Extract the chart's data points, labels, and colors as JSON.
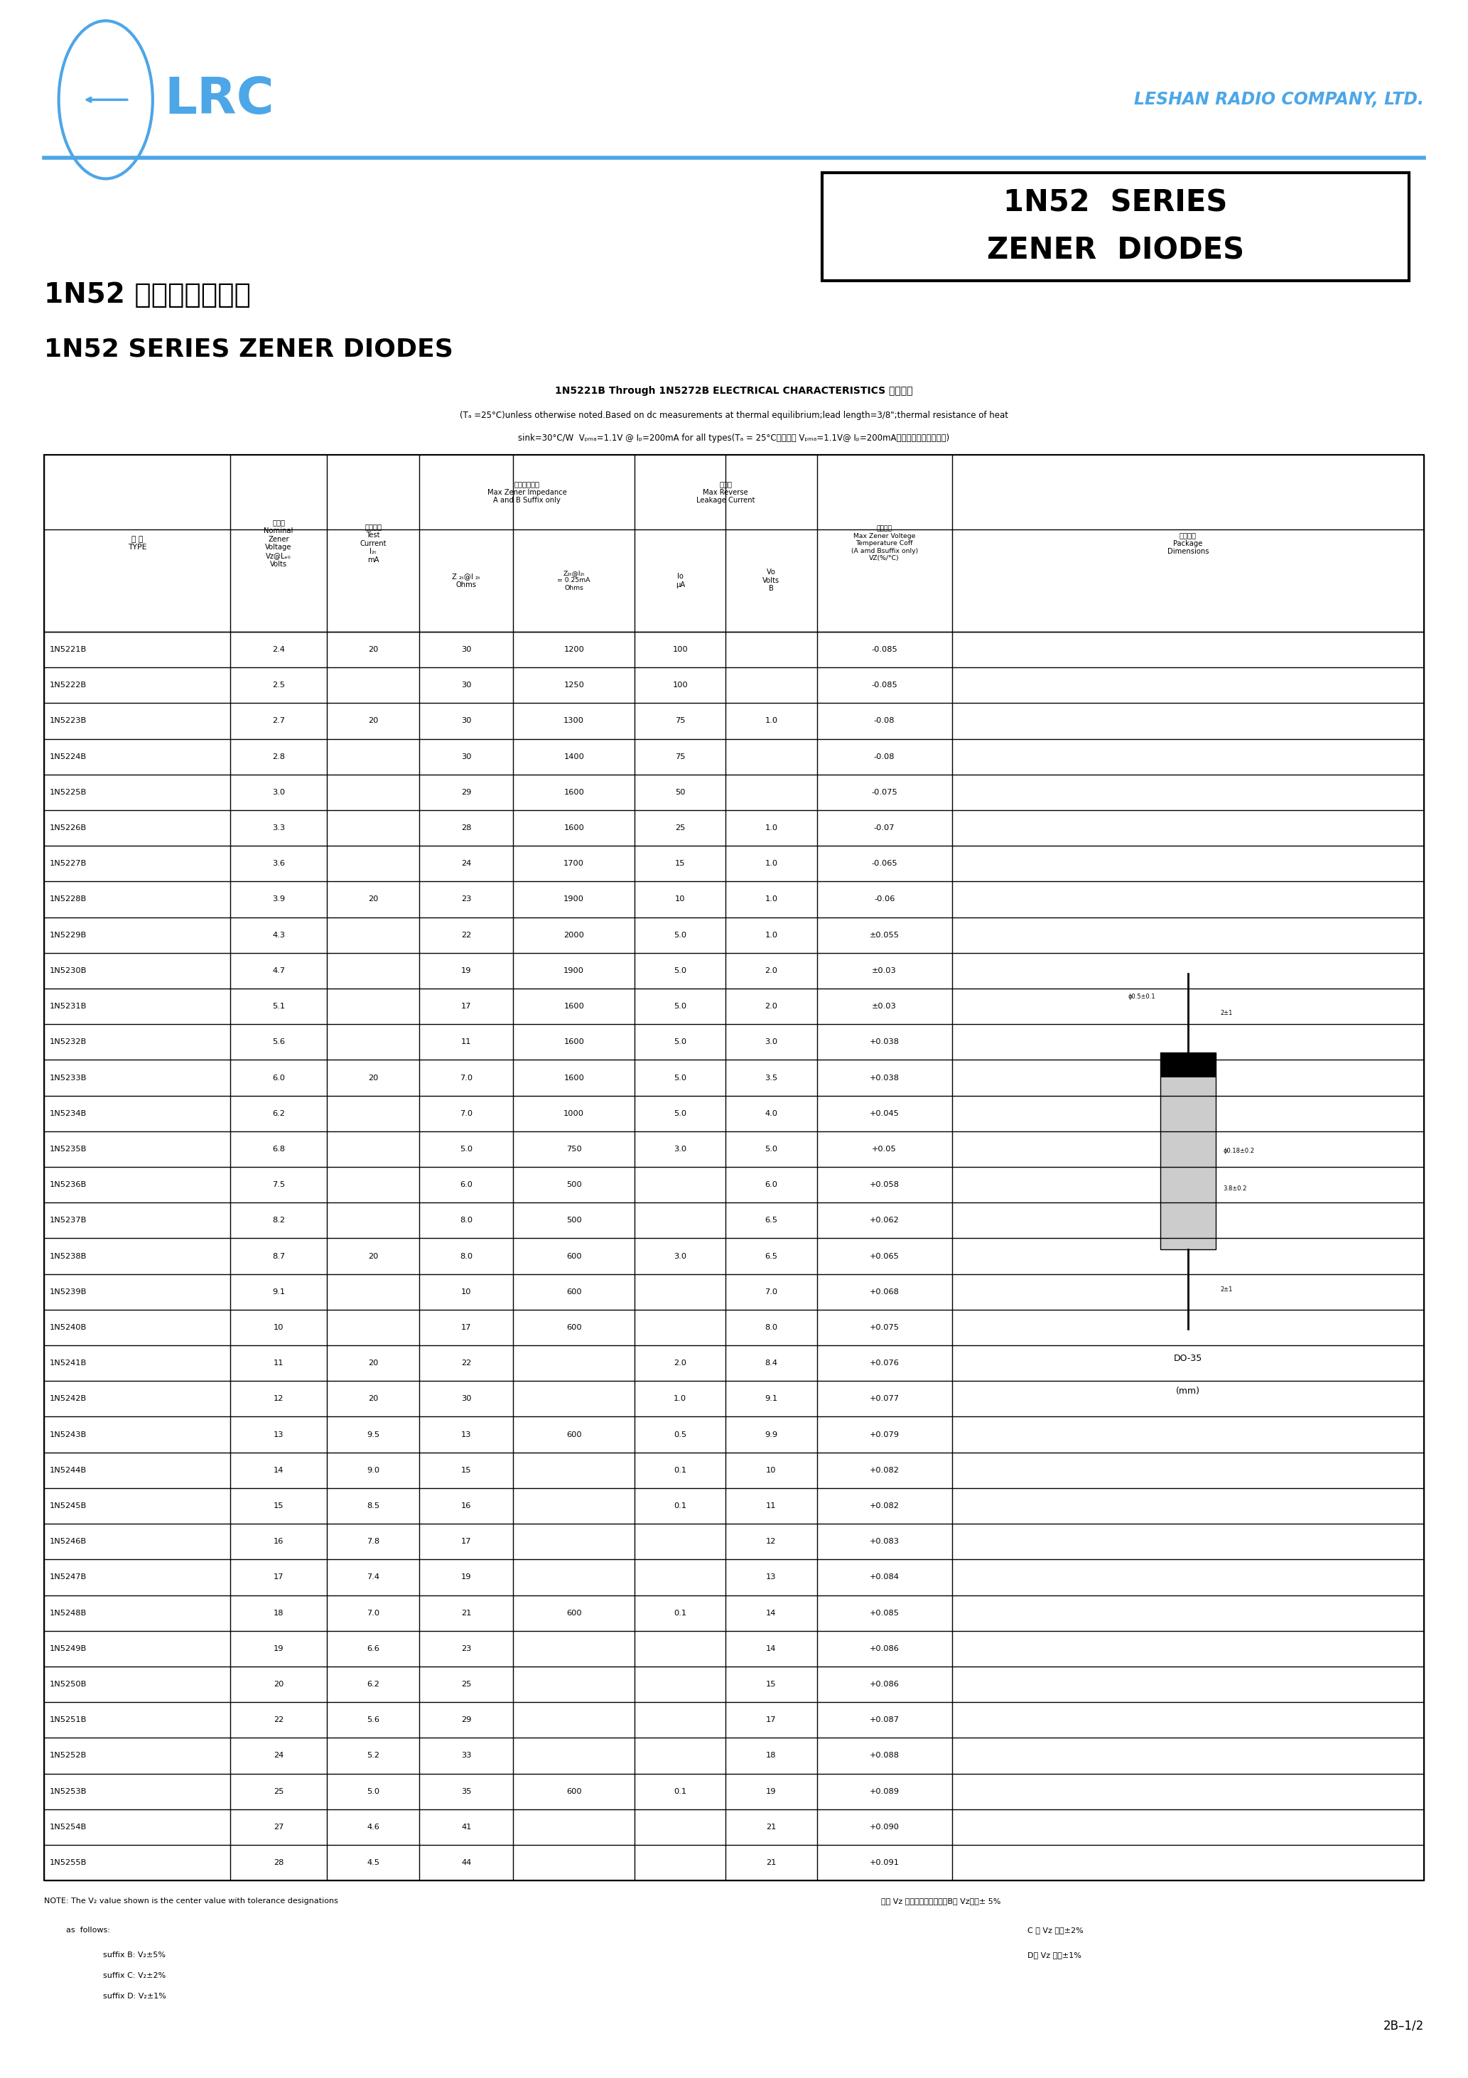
{
  "page_bg": "#ffffff",
  "logo_color": "#4da6e8",
  "company_name": "LESHAN RADIO COMPANY, LTD.",
  "title_box_text1": "1N52  SERIES",
  "title_box_text2": "ZENER  DIODES",
  "chinese_title": "1N52 系列稳压二极管",
  "english_title": "1N52 SERIES ZENER DIODES",
  "elec_char_title": "1N5221B Through 1N5272B ELECTRICAL CHARACTERISTICS 电性参数",
  "elec_char_note1": "(Tₐ =25°C)unless otherwise noted.Based on dc measurements at thermal equilibrium;lead length=3/8\";thermal resistance of heat",
  "elec_char_note2": "sink=30°C/W  Vₚₘₐ=1.1V @ Iₚ=200mA for all types(Tₐ = 25°C所有型号 Vₚₘₐ=1.1V@ Iₚ=200mA，其它特别说明除外。)",
  "table_data": [
    [
      "1N5221B",
      "2.4",
      "20",
      "30",
      "1200",
      "100",
      "",
      "-0.085"
    ],
    [
      "1N5222B",
      "2.5",
      "",
      "30",
      "1250",
      "100",
      "",
      "-0.085"
    ],
    [
      "1N5223B",
      "2.7",
      "20",
      "30",
      "1300",
      "75",
      "1.0",
      "-0.08"
    ],
    [
      "1N5224B",
      "2.8",
      "",
      "30",
      "1400",
      "75",
      "",
      "-0.08"
    ],
    [
      "1N5225B",
      "3.0",
      "",
      "29",
      "1600",
      "50",
      "",
      "-0.075"
    ],
    [
      "1N5226B",
      "3.3",
      "",
      "28",
      "1600",
      "25",
      "1.0",
      "-0.07"
    ],
    [
      "1N5227B",
      "3.6",
      "",
      "24",
      "1700",
      "15",
      "1.0",
      "-0.065"
    ],
    [
      "1N5228B",
      "3.9",
      "20",
      "23",
      "1900",
      "10",
      "1.0",
      "-0.06"
    ],
    [
      "1N5229B",
      "4.3",
      "",
      "22",
      "2000",
      "5.0",
      "1.0",
      "±0.055"
    ],
    [
      "1N5230B",
      "4.7",
      "",
      "19",
      "1900",
      "5.0",
      "2.0",
      "±0.03"
    ],
    [
      "1N5231B",
      "5.1",
      "",
      "17",
      "1600",
      "5.0",
      "2.0",
      "±0.03"
    ],
    [
      "1N5232B",
      "5.6",
      "",
      "11",
      "1600",
      "5.0",
      "3.0",
      "+0.038"
    ],
    [
      "1N5233B",
      "6.0",
      "20",
      "7.0",
      "1600",
      "5.0",
      "3.5",
      "+0.038"
    ],
    [
      "1N5234B",
      "6.2",
      "",
      "7.0",
      "1000",
      "5.0",
      "4.0",
      "+0.045"
    ],
    [
      "1N5235B",
      "6.8",
      "",
      "5.0",
      "750",
      "3.0",
      "5.0",
      "+0.05"
    ],
    [
      "1N5236B",
      "7.5",
      "",
      "6.0",
      "500",
      "",
      "6.0",
      "+0.058"
    ],
    [
      "1N5237B",
      "8.2",
      "",
      "8.0",
      "500",
      "",
      "6.5",
      "+0.062"
    ],
    [
      "1N5238B",
      "8.7",
      "20",
      "8.0",
      "600",
      "3.0",
      "6.5",
      "+0.065"
    ],
    [
      "1N5239B",
      "9.1",
      "",
      "10",
      "600",
      "",
      "7.0",
      "+0.068"
    ],
    [
      "1N5240B",
      "10",
      "",
      "17",
      "600",
      "",
      "8.0",
      "+0.075"
    ],
    [
      "1N5241B",
      "11",
      "20",
      "22",
      "",
      "2.0",
      "8.4",
      "+0.076"
    ],
    [
      "1N5242B",
      "12",
      "20",
      "30",
      "",
      "1.0",
      "9.1",
      "+0.077"
    ],
    [
      "1N5243B",
      "13",
      "9.5",
      "13",
      "600",
      "0.5",
      "9.9",
      "+0.079"
    ],
    [
      "1N5244B",
      "14",
      "9.0",
      "15",
      "",
      "0.1",
      "10",
      "+0.082"
    ],
    [
      "1N5245B",
      "15",
      "8.5",
      "16",
      "",
      "0.1",
      "11",
      "+0.082"
    ],
    [
      "1N5246B",
      "16",
      "7.8",
      "17",
      "",
      "",
      "12",
      "+0.083"
    ],
    [
      "1N5247B",
      "17",
      "7.4",
      "19",
      "",
      "",
      "13",
      "+0.084"
    ],
    [
      "1N5248B",
      "18",
      "7.0",
      "21",
      "600",
      "0.1",
      "14",
      "+0.085"
    ],
    [
      "1N5249B",
      "19",
      "6.6",
      "23",
      "",
      "",
      "14",
      "+0.086"
    ],
    [
      "1N5250B",
      "20",
      "6.2",
      "25",
      "",
      "",
      "15",
      "+0.086"
    ],
    [
      "1N5251B",
      "22",
      "5.6",
      "29",
      "",
      "",
      "17",
      "+0.087"
    ],
    [
      "1N5252B",
      "24",
      "5.2",
      "33",
      "",
      "",
      "18",
      "+0.088"
    ],
    [
      "1N5253B",
      "25",
      "5.0",
      "35",
      "600",
      "0.1",
      "19",
      "+0.089"
    ],
    [
      "1N5254B",
      "27",
      "4.6",
      "41",
      "",
      "",
      "21",
      "+0.090"
    ],
    [
      "1N5255B",
      "28",
      "4.5",
      "44",
      "",
      "",
      "21",
      "+0.091"
    ]
  ],
  "blue": "#4da6e8",
  "dark": "#1a1a1a",
  "page_number": "2B–1/2"
}
